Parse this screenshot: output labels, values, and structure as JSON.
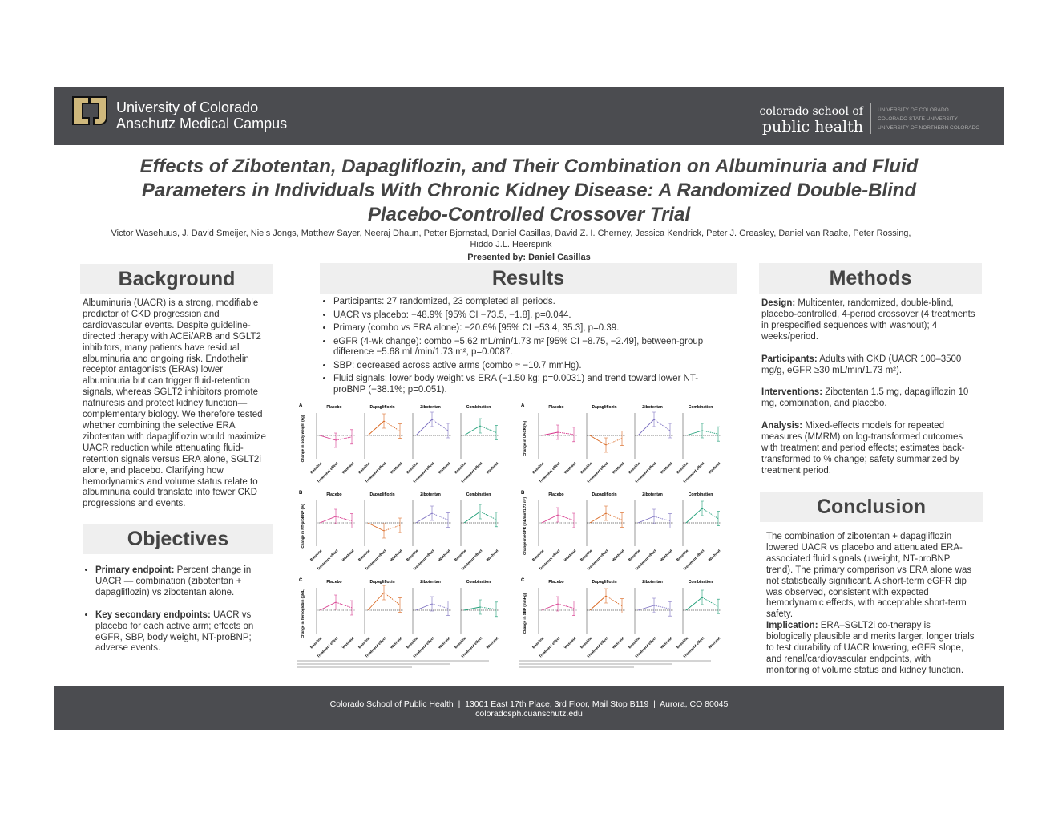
{
  "header": {
    "university": [
      "University of Colorado",
      "Anschutz Medical Campus"
    ],
    "school": [
      "colorado school of",
      "public health"
    ],
    "affiliates": [
      "UNIVERSITY OF COLORADO",
      "COLORADO STATE UNIVERSITY",
      "UNIVERSITY OF NORTHERN COLORADO"
    ]
  },
  "title_lines": [
    "Effects of Zibotentan, Dapagliflozin, and Their Combination on Albuminuria and Fluid",
    "Parameters in Individuals With Chronic Kidney Disease: A Randomized Double-Blind",
    "Placebo-Controlled Crossover Trial"
  ],
  "authors": "Victor Wasehuus, J. David Smeijer, Niels Jongs, Matthew Sayer, Neeraj Dhaun, Petter Bjornstad, Daniel Casillas, David Z. I. Cherney, Jessica Kendrick, Peter J. Greasley, Daniel van Raalte, Peter Rossing, Hiddo J.L. Heerspink",
  "presenter": "Presented by: Daniel Casillas",
  "background": {
    "heading": "Background",
    "text": "Albuminuria (UACR) is a strong, modifiable predictor of CKD progression and cardiovascular events. Despite guideline-directed therapy with ACEi/ARB and SGLT2 inhibitors, many patients have residual albuminuria and ongoing risk. Endothelin receptor antagonists (ERAs) lower albuminuria but can trigger fluid-retention signals, whereas SGLT2 inhibitors promote natriuresis and protect kidney function—complementary biology. We therefore tested whether combining the selective ERA zibotentan with dapagliflozin would maximize UACR reduction while attenuating fluid-retention signals versus ERA alone, SGLT2i alone, and placebo. Clarifying how hemodynamics and volume status relate to albuminuria could translate into fewer CKD progressions and events."
  },
  "objectives": {
    "heading": "Objectives",
    "items": [
      {
        "label": "Primary endpoint:",
        "text": "Percent change in UACR — combination (zibotentan + dapagliflozin) vs zibotentan alone."
      },
      {
        "label": "Key secondary endpoints:",
        "text": "UACR vs placebo for each active arm; effects on eGFR, SBP, body weight, NT-proBNP; adverse events."
      }
    ]
  },
  "results": {
    "heading": "Results",
    "bullets": [
      "Participants: 27 randomized, 23 completed all periods.",
      "UACR vs placebo: −48.9% [95% CI −73.5, −1.8], p=0.044.",
      "Primary (combo vs ERA alone): −20.6% [95% CI −53.4, 35.3], p=0.39.",
      "eGFR (4-wk change): combo −5.62 mL/min/1.73 m² [95% CI −8.75, −2.49], between-group difference −5.68 mL/min/1.73 m², p=0.0087.",
      "SBP: decreased across active arms (combo ≈ −10.7 mmHg).",
      "Fluid signals: lower body weight vs ERA (−1.50 kg; p=0.0031) and trend toward lower NT-proBNP (−38.1%; p=0.051)."
    ]
  },
  "figure": {
    "groups": [
      "Placebo",
      "Dapagliflozin",
      "Zibotentan",
      "Combination"
    ],
    "timepoints": [
      "Baseline",
      "Treatment effect",
      "Washout"
    ],
    "panels": [
      {
        "letter": "A",
        "y_label": "Change in body weight (kg)"
      },
      {
        "letter": "A",
        "y_label": "Change in UACR (%)"
      },
      {
        "letter": "B",
        "y_label": "Change in NT-proBNP (%)"
      },
      {
        "letter": "B",
        "y_label": "Change in eGFR (mL/min/1.73 m²)"
      },
      {
        "letter": "C",
        "y_label": "Change in hemoglobin (g/dL)"
      },
      {
        "letter": "C",
        "y_label": "Change in SBP (mmHg)"
      }
    ]
  },
  "methods": {
    "heading": "Methods",
    "items": [
      {
        "label": "Design:",
        "text": "Multicenter, randomized, double-blind, placebo-controlled, 4-period crossover (4 treatments in prespecified sequences with washout); 4 weeks/period."
      },
      {
        "label": "Participants:",
        "text": "Adults with CKD (UACR 100–3500 mg/g, eGFR ≥30 mL/min/1.73 m²)."
      },
      {
        "label": "Interventions:",
        "text": "Zibotentan 1.5 mg, dapagliflozin 10 mg, combination, and placebo."
      },
      {
        "label": "Analysis:",
        "text": "Mixed-effects models for repeated measures (MMRM) on log-transformed outcomes with treatment and period effects; estimates back-transformed to % change; safety summarized by treatment period."
      }
    ]
  },
  "conclusion": {
    "heading": "Conclusion",
    "text": "The combination of zibotentan + dapagliflozin lowered UACR vs placebo and attenuated ERA-associated fluid signals (↓weight, NT-proBNP trend). The primary comparison vs ERA alone was not statistically significant. A short-term eGFR dip was observed, consistent with expected hemodynamic effects, with acceptable short-term safety.",
    "implication_label": "Implication:",
    "implication_text": "ERA–SGLT2i co-therapy is biologically plausible and merits larger, longer trials to test durability of UACR lowering, eGFR slope, and renal/cardiovascular endpoints, with monitoring of volume status and kidney function."
  },
  "footer": {
    "address": "Colorado School of Public Health  |  13001 East 17th Place, 3rd Floor, Mail Stop B119  |  Aurora, CO 80045",
    "url": "coloradosph.cuanschutz.edu"
  }
}
